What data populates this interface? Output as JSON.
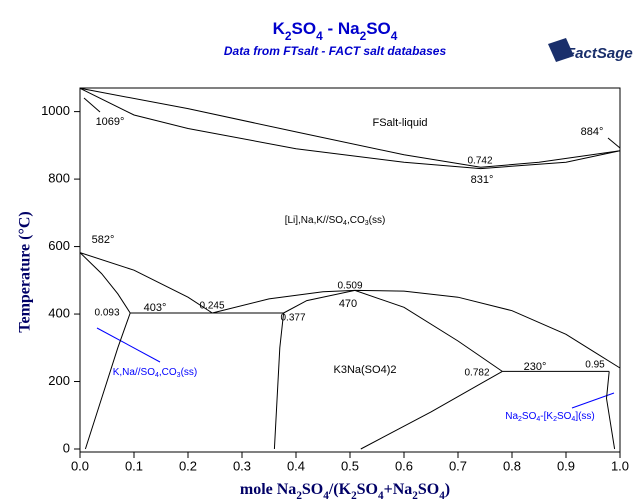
{
  "chart_data": {
    "type": "line",
    "title": "K2SO4 - Na2SO4",
    "subtitle": "Data from FTsalt - FACT salt databases",
    "logo": "FactSage",
    "x_label": "mole Na2SO4/(K2SO4+Na2SO4)",
    "y_label": "Temperature (°C)",
    "color": "#000000",
    "title_color": "#0000cc",
    "xlim": [
      0,
      1
    ],
    "ylim": [
      0,
      1070
    ],
    "xticks": [
      {
        "value": 0,
        "label": "0.0"
      },
      0.1,
      0.2,
      0.3,
      0.4,
      0.5,
      0.6,
      0.7,
      0.8,
      0.9,
      {
        "value": 1,
        "label": "1.0"
      }
    ],
    "yticks": [
      0,
      200,
      400,
      600,
      800,
      1000
    ],
    "grid": false,
    "series": [
      {
        "x": [
          0,
          0.2,
          0.4,
          0.6,
          0.742,
          0.85,
          1
        ],
        "values": [
          1069,
          1009,
          940,
          872,
          835,
          850,
          884
        ]
      },
      {
        "x": [
          0,
          0.1,
          0.2,
          0.4,
          0.6,
          0.742,
          0.9,
          1
        ],
        "values": [
          1069,
          990,
          950,
          890,
          850,
          831,
          850,
          884
        ]
      },
      {
        "x": [
          0,
          0.1,
          0.2,
          0.245
        ],
        "values": [
          582,
          530,
          450,
          403
        ]
      },
      {
        "x": [
          0,
          0.04,
          0.07,
          0.093
        ],
        "values": [
          582,
          520,
          460,
          403
        ]
      },
      {
        "x": [
          0.093,
          0.07,
          0.04,
          0.01
        ],
        "values": [
          403,
          300,
          150,
          0
        ]
      },
      {
        "x": [
          0.093,
          0.377
        ],
        "values": [
          403,
          403
        ]
      },
      {
        "x": [
          0.245,
          0.35,
          0.45,
          0.509,
          0.6,
          0.7,
          0.8,
          0.9,
          0.95,
          1
        ],
        "values": [
          403,
          445,
          466,
          470,
          468,
          450,
          410,
          340,
          290,
          240
        ]
      },
      {
        "x": [
          0.377,
          0.42,
          0.509,
          0.6,
          0.7,
          0.782
        ],
        "values": [
          403,
          440,
          470,
          420,
          320,
          230
        ]
      },
      {
        "x": [
          0.377,
          0.37,
          0.365,
          0.36
        ],
        "values": [
          403,
          300,
          150,
          0
        ]
      },
      {
        "x": [
          0.782,
          0.98
        ],
        "values": [
          230,
          230
        ]
      },
      {
        "x": [
          0.782,
          0.65,
          0.52
        ],
        "values": [
          230,
          110,
          0
        ]
      },
      {
        "x": [
          0.98,
          0.975,
          0.99
        ],
        "values": [
          230,
          150,
          0
        ]
      }
    ],
    "annotations": [
      {
        "text": "FSalt-liquid",
        "color": "#000000"
      },
      {
        "text": "1069°",
        "color": "#000000"
      },
      {
        "text": "884°",
        "color": "#000000"
      },
      {
        "text": "0.742",
        "color": "#000000"
      },
      {
        "text": "831°",
        "color": "#000000"
      },
      {
        "text": "[Li],Na,K//SO4,CO3(ss)",
        "color": "#000000"
      },
      {
        "text": "582°",
        "color": "#000000"
      },
      {
        "text": "0.509",
        "color": "#000000"
      },
      {
        "text": "403°",
        "color": "#000000"
      },
      {
        "text": "0.245",
        "color": "#000000"
      },
      {
        "text": "470",
        "color": "#000000"
      },
      {
        "text": "0.093",
        "color": "#000000"
      },
      {
        "text": "0.377",
        "color": "#000000"
      },
      {
        "text": "K3Na(SO4)2",
        "color": "#000000"
      },
      {
        "text": "K,Na//SO4,CO3(ss)",
        "color": "#0000ff"
      },
      {
        "text": "0.782",
        "color": "#000000"
      },
      {
        "text": "230°",
        "color": "#000000"
      },
      {
        "text": "0.95",
        "color": "#000000"
      },
      {
        "text": "Na2SO4-[K2SO4](ss)",
        "color": "#0000ff"
      }
    ]
  }
}
